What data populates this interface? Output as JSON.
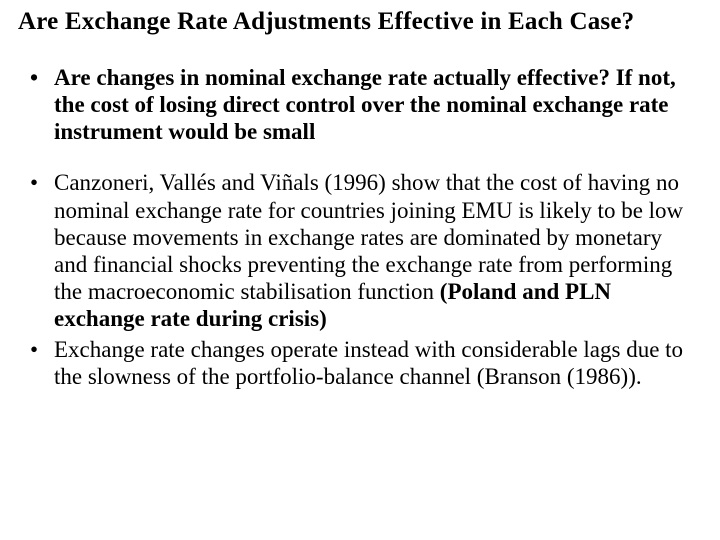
{
  "title": "Are Exchange Rate Adjustments Effective in Each Case?",
  "bullets": {
    "b1": "Are changes in nominal exchange rate actually effective? If not, the cost of losing direct control over the nominal exchange rate instrument would be  small",
    "b2_plain": "Canzoneri, Vallés and Viñals (1996) show that the cost of having no nominal exchange rate for countries joining EMU is likely to be low because movements in exchange rates are dominated by monetary and financial shocks preventing the exchange rate from performing the macroeconomic stabilisation function ",
    "b2_bold": "(Poland and PLN exchange rate during crisis)",
    "b3": "Exchange rate changes operate instead with considerable lags due to the slowness of the portfolio-balance channel (Branson (1986))."
  }
}
